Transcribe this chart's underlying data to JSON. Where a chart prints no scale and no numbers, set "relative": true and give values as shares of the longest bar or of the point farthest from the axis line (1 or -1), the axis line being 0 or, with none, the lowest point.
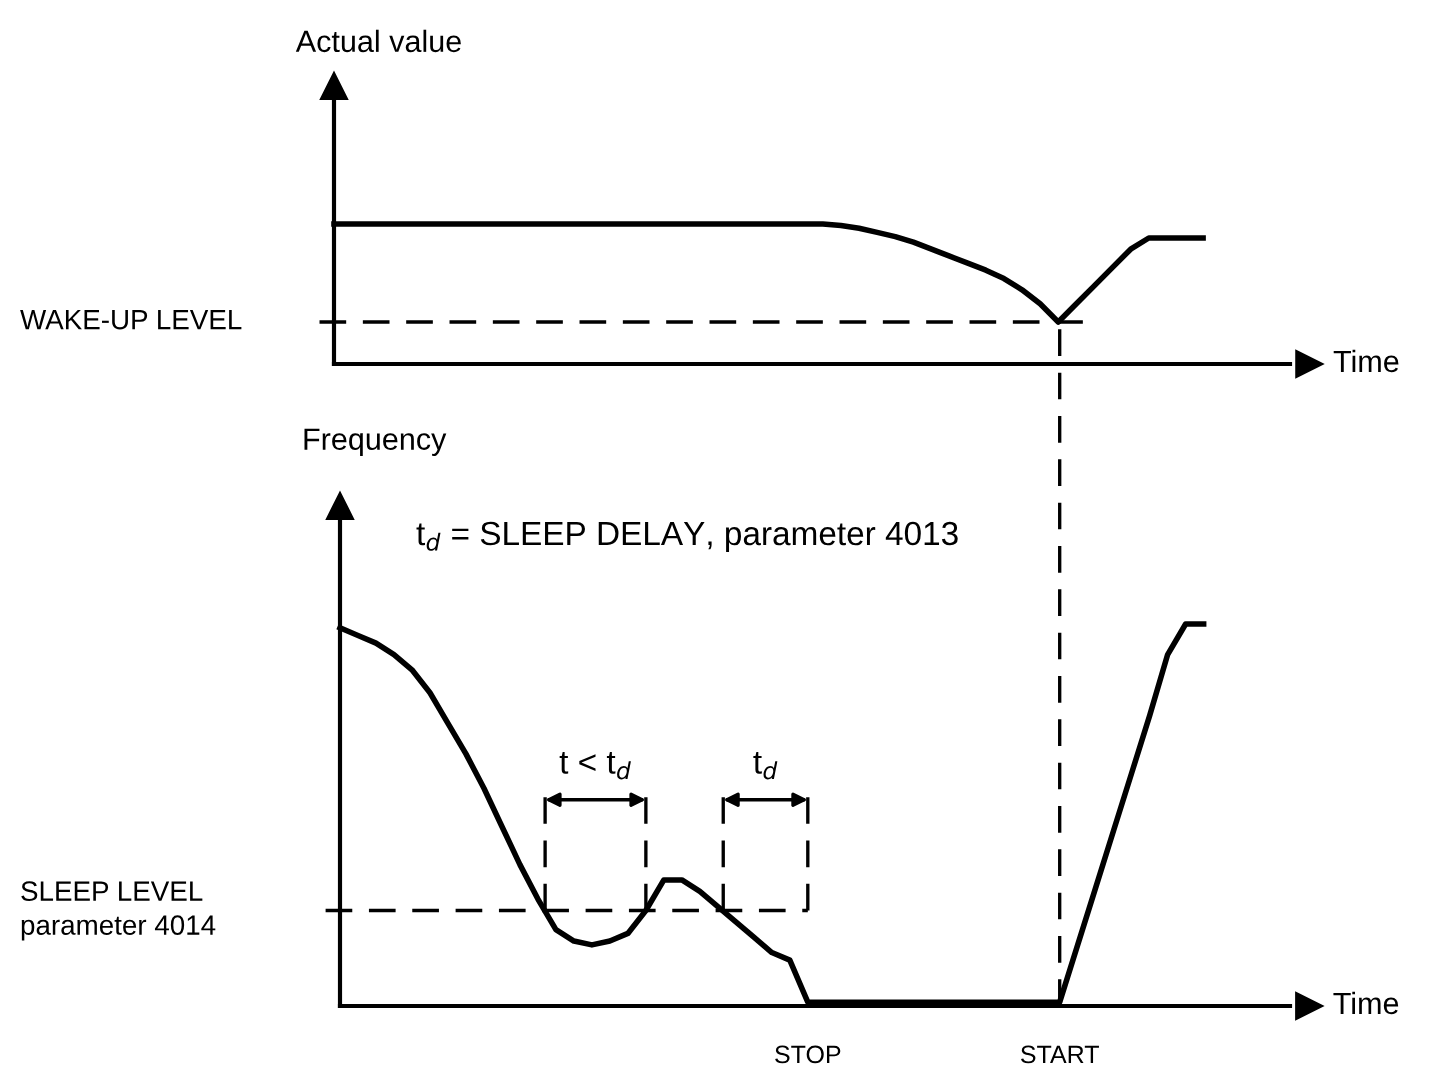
{
  "chart_data": [
    {
      "type": "line",
      "ylabel": "Actual value",
      "xlabel": "Time",
      "relative": true,
      "tick_labels": false,
      "marker": "none",
      "line_style": "solid",
      "categories": [
        null,
        null,
        null,
        null,
        null,
        null,
        null,
        null,
        null,
        null,
        null,
        null,
        null,
        null,
        null,
        null,
        null,
        null,
        null,
        null,
        null,
        null,
        null,
        null,
        null,
        null,
        null,
        null,
        null,
        null,
        null,
        null,
        null,
        null,
        null,
        null,
        null,
        null,
        null,
        null,
        null,
        null,
        null,
        null,
        null,
        null,
        null,
        null,
        null
      ],
      "series": [
        {
          "color": "#000000",
          "values": [
            1,
            1,
            1,
            1,
            1,
            1,
            1,
            1,
            1,
            1,
            1,
            1,
            1,
            1,
            1,
            1,
            1,
            1,
            1,
            1,
            1,
            1,
            1,
            1,
            1,
            1,
            1,
            1,
            0.99,
            0.97,
            0.94,
            0.91,
            0.87,
            0.82,
            0.77,
            0.72,
            0.67,
            0.61,
            0.53,
            0.43,
            0.3,
            0.43,
            0.56,
            0.69,
            0.82,
            0.9,
            0.9,
            0.9,
            0.9
          ]
        }
      ],
      "ref_lines": [
        {
          "axis": "y",
          "value": 0.3,
          "label": "WAKE-UP LEVEL",
          "line_style": "dashed",
          "color": "#000000"
        }
      ]
    },
    {
      "type": "line",
      "ylabel": "Frequency",
      "xlabel": "Time",
      "relative": true,
      "tick_labels": "x",
      "marker": "none",
      "line_style": "solid",
      "categories": [
        null,
        null,
        null,
        null,
        null,
        null,
        null,
        null,
        null,
        null,
        null,
        null,
        null,
        null,
        null,
        null,
        null,
        null,
        null,
        null,
        null,
        null,
        null,
        null,
        null,
        null,
        "STOP",
        null,
        null,
        null,
        null,
        null,
        null,
        null,
        null,
        null,
        null,
        null,
        null,
        null,
        "START",
        null,
        null,
        null,
        null,
        null,
        null,
        null,
        null
      ],
      "series": [
        {
          "color": "#000000",
          "values": [
            0.99,
            0.97,
            0.95,
            0.92,
            0.88,
            0.82,
            0.74,
            0.66,
            0.57,
            0.47,
            0.37,
            0.28,
            0.2,
            0.17,
            0.16,
            0.17,
            0.19,
            0.25,
            0.33,
            0.33,
            0.3,
            0.26,
            0.22,
            0.18,
            0.14,
            0.12,
            0.01,
            0.01,
            0.01,
            0.01,
            0.01,
            0.01,
            0.01,
            0.01,
            0.01,
            0.01,
            0.01,
            0.01,
            0.01,
            0.01,
            0.01,
            0.16,
            0.31,
            0.46,
            0.61,
            0.76,
            0.92,
            1,
            1
          ]
        }
      ],
      "ref_lines": [
        {
          "axis": "y",
          "value": 0.25,
          "label": "SLEEP LEVEL\nparameter 4014",
          "line_style": "dashed",
          "color": "#000000"
        },
        {
          "axis": "x",
          "value": "START",
          "line_style": "dashed",
          "color": "#000000"
        }
      ],
      "annotations": [
        "t$_{d}$ = SLEEP DELAY, parameter 4013",
        "t < t$_{d}$",
        "t$_{d}$"
      ]
    }
  ]
}
